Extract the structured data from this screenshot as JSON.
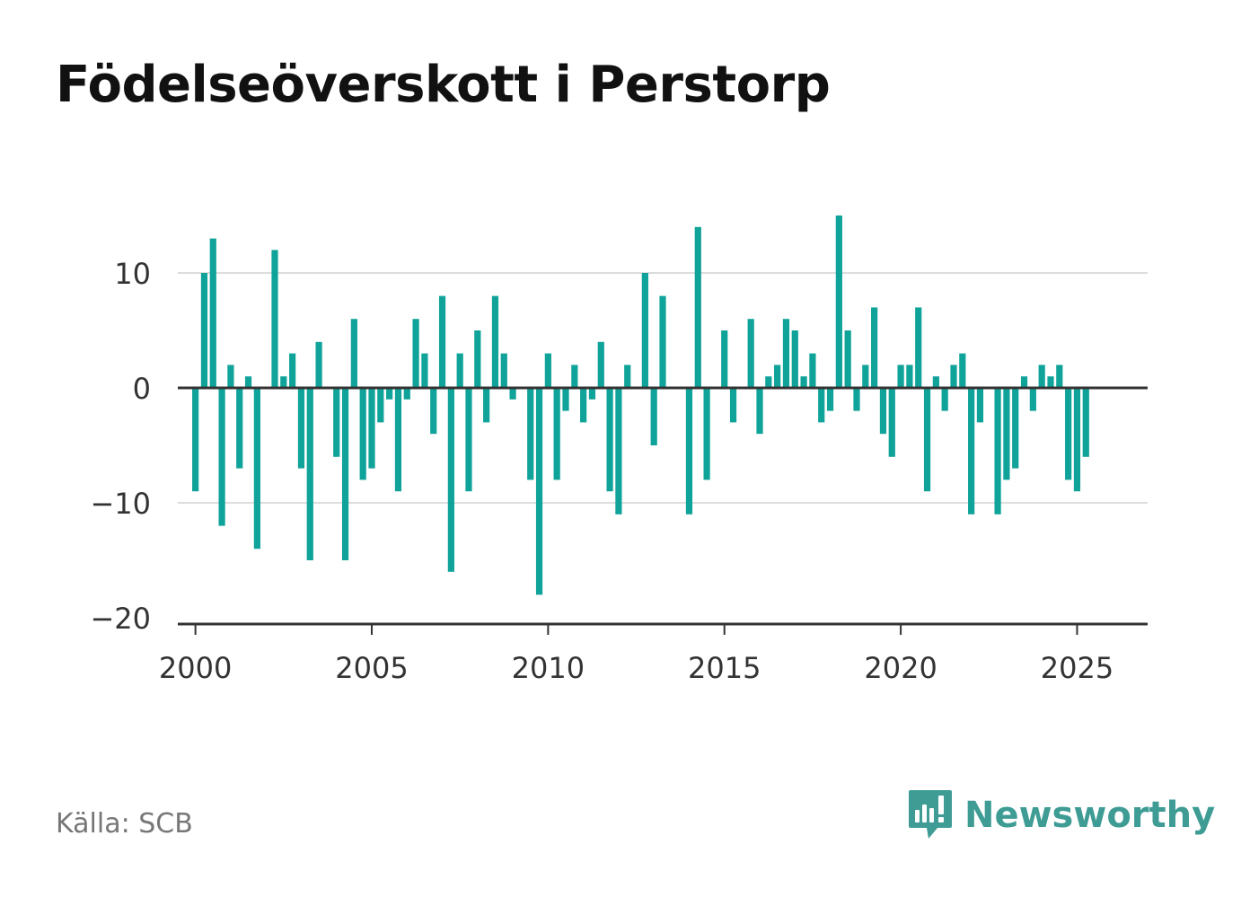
{
  "title": "Födelseöverskott i Perstorp",
  "source": "Källa: SCB",
  "brand": {
    "name": "Newsworthy",
    "icon": "bar-chart-speech-bubble-icon"
  },
  "colors": {
    "bar": "#0fa39a",
    "zero_line": "#333333",
    "grid": "#dddddd",
    "brand": "#3e9c95"
  },
  "chart_data": {
    "type": "bar",
    "frequency": "quarterly",
    "x_start": "2000 Q1",
    "values": [
      -9,
      10,
      13,
      -12,
      2,
      -7,
      1,
      -14,
      0,
      12,
      1,
      3,
      -7,
      -15,
      4,
      0,
      -6,
      -15,
      6,
      -8,
      -7,
      -3,
      -1,
      -9,
      -1,
      6,
      3,
      -4,
      8,
      -16,
      3,
      -9,
      5,
      -3,
      8,
      3,
      -1,
      0,
      -8,
      -18,
      3,
      -8,
      -2,
      2,
      -3,
      -1,
      4,
      -9,
      -11,
      2,
      0,
      10,
      -5,
      8,
      0,
      0,
      -11,
      14,
      -8,
      0,
      5,
      -3,
      0,
      6,
      -4,
      1,
      2,
      6,
      5,
      1,
      3,
      -3,
      -2,
      15,
      5,
      -2,
      2,
      7,
      -4,
      -6,
      2,
      2,
      7,
      -9,
      1,
      -2,
      2,
      3,
      -11,
      -3,
      0,
      -11,
      -8,
      -7,
      1,
      -2,
      2,
      1,
      2,
      -8,
      -9,
      -6
    ],
    "ylim": [
      -20,
      15
    ],
    "yticks": [
      10,
      0,
      -10,
      -20
    ],
    "ytick_labels": [
      "10",
      "0",
      "−10",
      "−20"
    ],
    "xlim": [
      1999.5,
      2027
    ],
    "xticks": [
      2000,
      2005,
      2010,
      2015,
      2020,
      2025
    ],
    "xtick_labels": [
      "2000",
      "2005",
      "2010",
      "2015",
      "2020",
      "2025"
    ],
    "grid": true,
    "xlabel": "",
    "ylabel": ""
  }
}
